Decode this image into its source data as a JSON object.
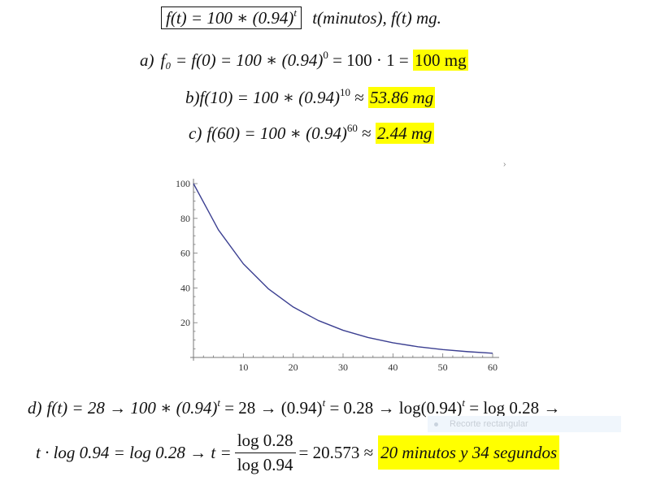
{
  "header": {
    "formula": "f(t) = 100 ∗ (0.94)",
    "formula_exp": "t",
    "units": "t(minutos), f(t) mg."
  },
  "part_a": {
    "label": "a)",
    "expr": "f₀ = f(0) = 100 ∗ (0.94)",
    "exp": "0",
    "tail": " = 100 · 1 = ",
    "answer": "100 mg"
  },
  "part_b": {
    "label": "b)",
    "expr": "f(10) = 100 ∗ (0.94)",
    "exp": "10",
    "tail": " ≈ ",
    "answer": "53.86 mg"
  },
  "part_c": {
    "label": "c)",
    "expr": "f(60) = 100 ∗ (0.94)",
    "exp": "60",
    "tail": " ≈ ",
    "answer": "2.44 mg"
  },
  "part_d": {
    "label": "d)",
    "line1_a": "f(t) = 28 → 100 ∗ (0.94)",
    "line1_b": " = 28 → (0.94)",
    "line1_c": " = 0.28 → log(0.94)",
    "line1_d": " = log 0.28 →",
    "exp_t": "t",
    "line2_a": "t · log 0.94 = log 0.28 → t =",
    "frac_num": "log 0.28",
    "frac_den": "log 0.94",
    "line2_b": "= 20.573 ≈",
    "answer": "20 minutos y 34 segundos"
  },
  "overlay": {
    "ghost_label": "Recorte rectangular",
    "corner_mark": "›"
  },
  "colors": {
    "highlight": "#ffff00",
    "curve": "#3b3f91",
    "axis": "#777777"
  },
  "chart_data": {
    "type": "line",
    "title": "",
    "xlabel": "",
    "ylabel": "",
    "xlim": [
      0,
      60
    ],
    "ylim": [
      0,
      100
    ],
    "x_ticks": [
      10,
      20,
      30,
      40,
      50,
      60
    ],
    "y_ticks": [
      20,
      40,
      60,
      80,
      100
    ],
    "x_tick_labels": [
      "10",
      "20",
      "30",
      "40",
      "50",
      "60"
    ],
    "y_tick_labels": [
      "20",
      "40",
      "60",
      "80",
      "100"
    ],
    "grid": false,
    "series": [
      {
        "x": [
          0,
          5,
          10,
          15,
          20,
          25,
          30,
          35,
          40,
          45,
          50,
          55,
          60
        ],
        "values": [
          100,
          73.39,
          53.86,
          39.53,
          29.01,
          21.29,
          15.63,
          11.47,
          8.42,
          6.18,
          4.53,
          3.33,
          2.44
        ]
      }
    ]
  }
}
